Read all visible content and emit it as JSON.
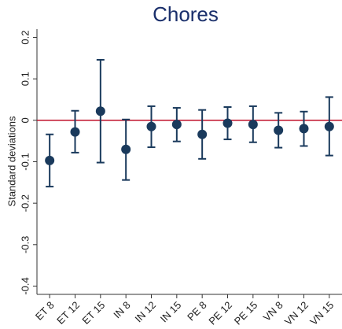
{
  "chart_data": {
    "type": "errorbar",
    "title": "Chores",
    "y_label": "Standard deviations",
    "categories": [
      "ET 8",
      "ET 12",
      "ET 15",
      "IN 8",
      "IN 12",
      "IN 15",
      "PE 8",
      "PE 12",
      "PE 15",
      "VN 8",
      "VN 12",
      "VN 15"
    ],
    "values": [
      -0.097,
      -0.028,
      0.022,
      -0.07,
      -0.015,
      -0.01,
      -0.034,
      -0.007,
      -0.01,
      -0.024,
      -0.02,
      -0.015
    ],
    "lower": [
      -0.16,
      -0.078,
      -0.102,
      -0.144,
      -0.065,
      -0.051,
      -0.093,
      -0.046,
      -0.053,
      -0.066,
      -0.062,
      -0.085
    ],
    "upper": [
      -0.034,
      0.023,
      0.146,
      0.002,
      0.034,
      0.03,
      0.025,
      0.032,
      0.034,
      0.018,
      0.021,
      0.056
    ],
    "color": "#1a3a5c",
    "reference_line": 0,
    "reference_color": "#c0102a",
    "ylim": [
      -0.42,
      0.22
    ],
    "yticks": [
      -0.4,
      -0.3,
      -0.2,
      -0.1,
      0,
      0.1,
      0.2
    ],
    "grid": false
  }
}
